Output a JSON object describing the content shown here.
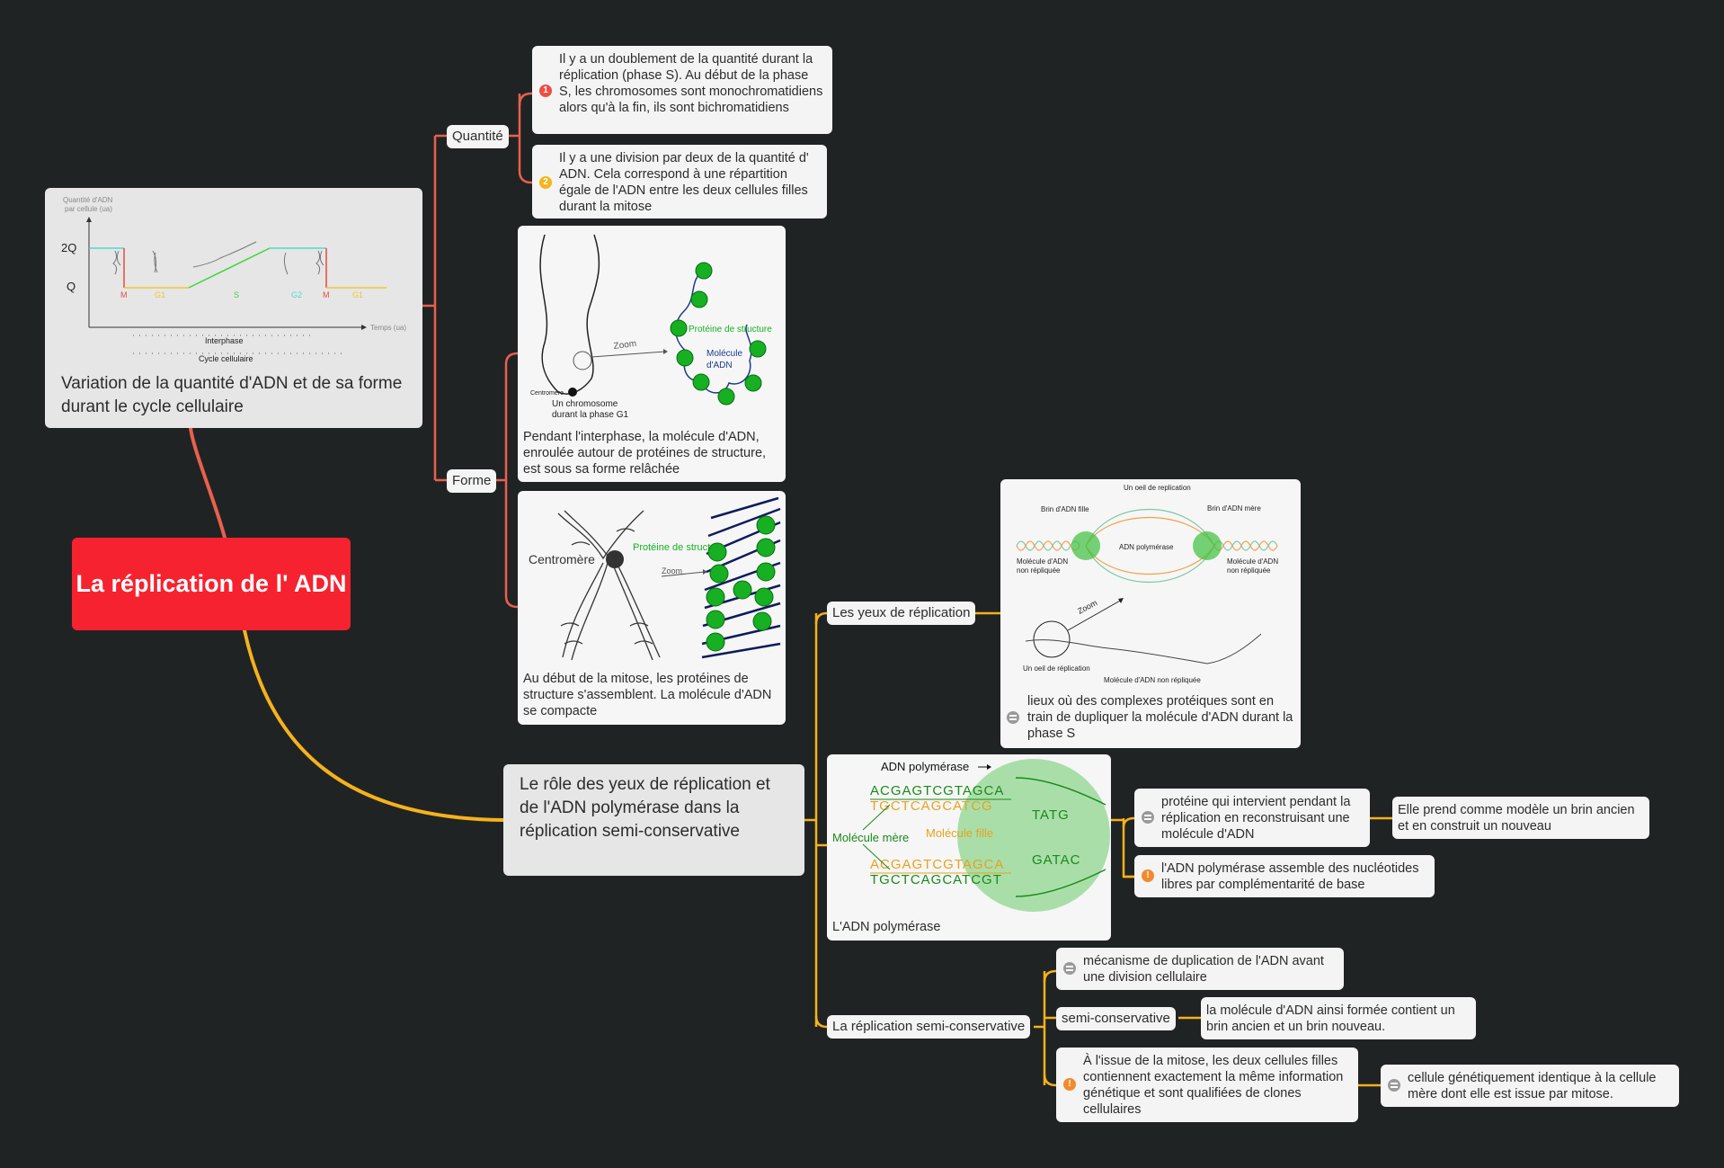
{
  "root": {
    "title": "La réplication de l' ADN"
  },
  "variation": {
    "caption": "Variation de la quantité d'ADN et de sa forme durant le cycle cellulaire",
    "graph": {
      "y_axis_label_1": "Quantité d'ADN",
      "y_axis_label_2": "par cellule (ua)",
      "y_tick_high": "2Q",
      "y_tick_low": "Q",
      "x_axis_label": "Temps (ua)",
      "phases": [
        "M",
        "G1",
        "S",
        "G2",
        "M",
        "G1"
      ],
      "interphase_label": "Interphase",
      "cycle_label": "Cycle cellulaire"
    }
  },
  "quantite": {
    "label": "Quantité",
    "item1": {
      "badge": "1",
      "text": "Il y a un doublement de la quantité durant la réplication (phase S). Au début de la phase S, les chromosomes sont monochromatidiens alors qu'à la fin, ils sont bichromatidiens"
    },
    "item2": {
      "badge": "2",
      "text": "Il y a une division par deux de la quantité d' ADN. Cela correspond à une répartition égale de l'ADN entre les deux cellules filles durant la mitose"
    }
  },
  "forme": {
    "label": "Forme",
    "card1": {
      "caption": "Pendant l'interphase, la molécule d'ADN, enroulée autour de protéines de structure, est sous sa forme relâchée",
      "zoom": "Zoom",
      "proteine": "Protéine de structure",
      "molecule": "Molécule",
      "molecule2": "d'ADN",
      "centromere": "Centromère",
      "chromosome": "Un chromosome",
      "chromosome2": "durant la phase G1"
    },
    "card2": {
      "caption": "Au début de la mitose, les protéines de structure s'assemblent. La molécule d'ADN se compacte",
      "centromere": "Centromère",
      "proteine": "Protéine de structure",
      "zoom": "Zoom"
    }
  },
  "role": {
    "title": "Le rôle des yeux de réplication et de l'ADN polymérase dans la réplication semi-conservative",
    "yeux": {
      "label": "Les yeux de réplication",
      "card": {
        "text": "lieux où des complexes protéiques sont en train de dupliquer la molécule d'ADN durant la phase S",
        "oeil_top": "Un oeil de replication",
        "brin_fille": "Brin d'ADN fille",
        "brin_mere": "Brin d'ADN mère",
        "polymerase": "ADN polymérase",
        "non_rep_l1": "Molécule d'ADN",
        "non_rep_l2": "non répliquée",
        "zoom": "Zoom",
        "oeil_bottom": "Un oeil de réplication",
        "mol_non_rep": "Molécule d'ADN non répliquée"
      }
    },
    "polymerase": {
      "caption": "L'ADN polymérase",
      "fig": {
        "title": "ADN polymérase",
        "top_strand": "ACGAGTCGTAGCA",
        "top_comp": "TGCTCAGCATCG",
        "top_tail": "TATG",
        "bottom_strand": "ACGAGTCGTAGCA",
        "bottom_comp": "TGCTCAGCATCGT",
        "bottom_tail": "GATAC",
        "mere": "Molécule mère",
        "fille": "Molécule fille"
      },
      "item1": {
        "text": "protéine qui intervient pendant la réplication en reconstruisant une molécule d'ADN",
        "sub": "Elle prend comme modèle un brin ancien et en construit un nouveau"
      },
      "item2": {
        "badge": "!",
        "text": "l'ADN polymérase assemble des nucléotides libres par complémentarité de base"
      }
    },
    "semi": {
      "label": "La réplication semi-conservative",
      "item1": {
        "text": "mécanisme de duplication de l'ADN avant une division cellulaire"
      },
      "item2": {
        "label": "semi-conservative",
        "sub": "la molécule d'ADN ainsi formée contient un brin ancien et un brin nouveau."
      },
      "item3": {
        "badge": "!",
        "text": "À l'issue de la mitose, les deux cellules filles contiennent exactement la même information génétique et sont qualifiées de clones cellulaires",
        "sub": "cellule génétiquement identique à la cellule mère dont elle est issue par mitose."
      }
    }
  },
  "colors": {
    "background": "#202324",
    "root": "#f6222f",
    "branch_red": "#e8604f",
    "branch_yellow": "#f5b21c"
  }
}
